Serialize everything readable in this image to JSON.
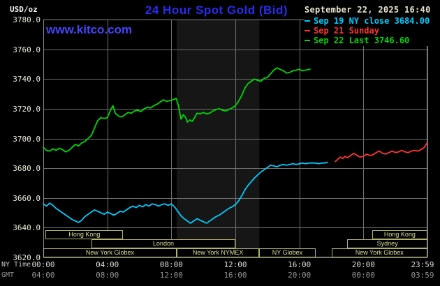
{
  "header": {
    "unit_label": "USD/oz",
    "title": "24 Hour Spot Gold (Bid)",
    "datetime": "September 22, 2025 16:40",
    "watermark": "www.kitco.com"
  },
  "legend": {
    "items": [
      {
        "label": "Sep 19 NY close 3684.00",
        "color": "#00ccff"
      },
      {
        "label": "Sep 21 Sunday",
        "color": "#ff3434"
      },
      {
        "label": "Sep 22 Last 3746.60",
        "color": "#00d800"
      }
    ]
  },
  "axes": {
    "ny_time_label": "NY Time",
    "gmt_label": "GMT",
    "ny_time_ticks": [
      "00:00",
      "04:00",
      "08:00",
      "12:00",
      "16:00",
      "20:00",
      "23:59"
    ],
    "gmt_ticks": [
      "04:00",
      "08:00",
      "12:00",
      "16:00",
      "20:00",
      "00:00",
      "03:59"
    ],
    "y_ticks": [
      "3780.0",
      "3760.0",
      "3740.0",
      "3720.0",
      "3700.0",
      "3680.0",
      "3660.0",
      "3640.0",
      "3620.0"
    ]
  },
  "sessions": [
    {
      "label": "Hong Kong",
      "row": 0,
      "start": 0.15,
      "end": 5.0
    },
    {
      "label": "Hong Kong",
      "row": 0,
      "start": 20.55,
      "end": 24
    },
    {
      "label": "London",
      "row": 1,
      "start": 3.0,
      "end": 12.0
    },
    {
      "label": "Sydney",
      "row": 1,
      "start": 19.0,
      "end": 24
    },
    {
      "label": "New York Globex",
      "row": 2,
      "start": 0,
      "end": 8.33
    },
    {
      "label": "New York NYMEX",
      "row": 2,
      "start": 8.33,
      "end": 13.5
    },
    {
      "label": "NY Globex",
      "row": 2,
      "start": 13.5,
      "end": 17.0
    },
    {
      "label": "New York Globex",
      "row": 2,
      "start": 18.0,
      "end": 24
    }
  ],
  "chart_data": {
    "type": "line",
    "title": "24 Hour Spot Gold (Bid)",
    "xlabel": "NY Time (hours)",
    "ylabel": "USD/oz",
    "xlim": [
      0,
      24
    ],
    "ylim": [
      3620,
      3780
    ],
    "x_grid_step": 4,
    "y_grid_step": 20,
    "grid": true,
    "legend_position": "top-right",
    "nymex_shade": {
      "start": 8.33,
      "end": 13.5
    },
    "colors": {
      "grid": "#707070",
      "border": "#8a8a8a",
      "shade": "#161616"
    },
    "series": [
      {
        "name": "Sep 19 NY close",
        "color": "#00ccff",
        "points": [
          [
            0,
            3656
          ],
          [
            0.2,
            3654.5
          ],
          [
            0.4,
            3656.5
          ],
          [
            0.6,
            3655
          ],
          [
            0.8,
            3653
          ],
          [
            1,
            3651.5
          ],
          [
            1.2,
            3650
          ],
          [
            1.4,
            3648.5
          ],
          [
            1.6,
            3647
          ],
          [
            1.8,
            3645.5
          ],
          [
            2,
            3644.5
          ],
          [
            2.2,
            3643.5
          ],
          [
            2.4,
            3645
          ],
          [
            2.6,
            3647.5
          ],
          [
            2.8,
            3649
          ],
          [
            3,
            3650.5
          ],
          [
            3.2,
            3652
          ],
          [
            3.4,
            3651
          ],
          [
            3.6,
            3650
          ],
          [
            3.8,
            3649
          ],
          [
            4,
            3650.5
          ],
          [
            4.2,
            3649.5
          ],
          [
            4.4,
            3648.5
          ],
          [
            4.6,
            3649.5
          ],
          [
            4.8,
            3651
          ],
          [
            5,
            3650.5
          ],
          [
            5.2,
            3652
          ],
          [
            5.4,
            3653.5
          ],
          [
            5.6,
            3654.5
          ],
          [
            5.8,
            3653.5
          ],
          [
            6,
            3655
          ],
          [
            6.2,
            3654
          ],
          [
            6.4,
            3655.5
          ],
          [
            6.6,
            3654.5
          ],
          [
            6.8,
            3656
          ],
          [
            7,
            3655.5
          ],
          [
            7.2,
            3654.5
          ],
          [
            7.4,
            3655.5
          ],
          [
            7.6,
            3656
          ],
          [
            7.8,
            3655
          ],
          [
            8,
            3656
          ],
          [
            8.2,
            3654
          ],
          [
            8.4,
            3651
          ],
          [
            8.6,
            3648
          ],
          [
            8.8,
            3646
          ],
          [
            9,
            3644.5
          ],
          [
            9.2,
            3643
          ],
          [
            9.4,
            3644.5
          ],
          [
            9.6,
            3646
          ],
          [
            9.8,
            3645
          ],
          [
            10,
            3644
          ],
          [
            10.2,
            3643
          ],
          [
            10.4,
            3644.5
          ],
          [
            10.6,
            3646
          ],
          [
            10.8,
            3647.5
          ],
          [
            11,
            3648.5
          ],
          [
            11.2,
            3650
          ],
          [
            11.4,
            3651.5
          ],
          [
            11.6,
            3653
          ],
          [
            11.8,
            3654
          ],
          [
            12,
            3655.5
          ],
          [
            12.2,
            3658
          ],
          [
            12.4,
            3661.5
          ],
          [
            12.6,
            3665.5
          ],
          [
            12.8,
            3668.5
          ],
          [
            13,
            3671
          ],
          [
            13.2,
            3673.5
          ],
          [
            13.4,
            3675.5
          ],
          [
            13.6,
            3677.5
          ],
          [
            13.8,
            3679
          ],
          [
            14,
            3680.5
          ],
          [
            14.2,
            3682
          ],
          [
            14.4,
            3681.5
          ],
          [
            14.6,
            3681
          ],
          [
            14.8,
            3682
          ],
          [
            15,
            3682.5
          ],
          [
            15.2,
            3682
          ],
          [
            15.4,
            3682.5
          ],
          [
            15.6,
            3683
          ],
          [
            15.8,
            3682.5
          ],
          [
            16,
            3683
          ],
          [
            16.2,
            3683.5
          ],
          [
            16.4,
            3683
          ],
          [
            16.6,
            3683.5
          ],
          [
            16.8,
            3683.5
          ],
          [
            17,
            3683.5
          ],
          [
            17.2,
            3683
          ],
          [
            17.4,
            3683.5
          ],
          [
            17.6,
            3683.5
          ],
          [
            17.75,
            3684
          ]
        ]
      },
      {
        "name": "Sep 21 Sunday",
        "color": "#ff3434",
        "points": [
          [
            18.25,
            3684.5
          ],
          [
            18.4,
            3686
          ],
          [
            18.55,
            3687.5
          ],
          [
            18.7,
            3686.5
          ],
          [
            18.85,
            3688
          ],
          [
            19,
            3687
          ],
          [
            19.2,
            3688.5
          ],
          [
            19.4,
            3690
          ],
          [
            19.6,
            3688.5
          ],
          [
            19.8,
            3687.5
          ],
          [
            20,
            3688
          ],
          [
            20.2,
            3689.5
          ],
          [
            20.4,
            3688.5
          ],
          [
            20.6,
            3689
          ],
          [
            20.8,
            3690.5
          ],
          [
            21,
            3691.5
          ],
          [
            21.2,
            3690
          ],
          [
            21.4,
            3689.5
          ],
          [
            21.6,
            3690.5
          ],
          [
            21.8,
            3691.5
          ],
          [
            22,
            3690.5
          ],
          [
            22.2,
            3691
          ],
          [
            22.4,
            3692
          ],
          [
            22.6,
            3691
          ],
          [
            22.8,
            3690.5
          ],
          [
            23,
            3691.5
          ],
          [
            23.2,
            3692
          ],
          [
            23.4,
            3691.5
          ],
          [
            23.6,
            3692.5
          ],
          [
            23.8,
            3694
          ],
          [
            23.98,
            3697
          ]
        ]
      },
      {
        "name": "Sep 22 Last",
        "color": "#00d800",
        "points": [
          [
            0,
            3694
          ],
          [
            0.2,
            3692
          ],
          [
            0.4,
            3691.5
          ],
          [
            0.6,
            3693
          ],
          [
            0.8,
            3692
          ],
          [
            1,
            3693.5
          ],
          [
            1.2,
            3692.5
          ],
          [
            1.4,
            3691
          ],
          [
            1.6,
            3692
          ],
          [
            1.8,
            3694
          ],
          [
            2,
            3696
          ],
          [
            2.2,
            3695
          ],
          [
            2.4,
            3697
          ],
          [
            2.6,
            3698
          ],
          [
            2.8,
            3700
          ],
          [
            3,
            3702
          ],
          [
            3.2,
            3707
          ],
          [
            3.4,
            3712
          ],
          [
            3.6,
            3714
          ],
          [
            3.8,
            3713.5
          ],
          [
            4,
            3714
          ],
          [
            4.2,
            3719
          ],
          [
            4.35,
            3722
          ],
          [
            4.5,
            3717
          ],
          [
            4.7,
            3715
          ],
          [
            4.9,
            3714.5
          ],
          [
            5.1,
            3716
          ],
          [
            5.3,
            3717.5
          ],
          [
            5.5,
            3717
          ],
          [
            5.7,
            3718.5
          ],
          [
            5.9,
            3719
          ],
          [
            6.1,
            3718
          ],
          [
            6.3,
            3720
          ],
          [
            6.5,
            3721
          ],
          [
            6.7,
            3720.5
          ],
          [
            6.9,
            3722
          ],
          [
            7.1,
            3723
          ],
          [
            7.3,
            3724.5
          ],
          [
            7.5,
            3726
          ],
          [
            7.7,
            3725
          ],
          [
            7.9,
            3725.5
          ],
          [
            8.1,
            3726
          ],
          [
            8.3,
            3727
          ],
          [
            8.45,
            3722
          ],
          [
            8.6,
            3713
          ],
          [
            8.75,
            3716
          ],
          [
            8.9,
            3714
          ],
          [
            9,
            3711
          ],
          [
            9.15,
            3712.5
          ],
          [
            9.3,
            3711.5
          ],
          [
            9.45,
            3714
          ],
          [
            9.6,
            3717
          ],
          [
            9.8,
            3716.5
          ],
          [
            10,
            3717.5
          ],
          [
            10.2,
            3716.5
          ],
          [
            10.4,
            3717
          ],
          [
            10.6,
            3718.5
          ],
          [
            10.8,
            3719.5
          ],
          [
            11,
            3720
          ],
          [
            11.2,
            3719
          ],
          [
            11.4,
            3718.5
          ],
          [
            11.6,
            3719.5
          ],
          [
            11.8,
            3720.5
          ],
          [
            12,
            3722
          ],
          [
            12.2,
            3725
          ],
          [
            12.4,
            3729
          ],
          [
            12.6,
            3734
          ],
          [
            12.8,
            3737
          ],
          [
            13,
            3738.5
          ],
          [
            13.2,
            3740
          ],
          [
            13.4,
            3739
          ],
          [
            13.6,
            3738.5
          ],
          [
            13.8,
            3740.5
          ],
          [
            14,
            3741
          ],
          [
            14.2,
            3743.5
          ],
          [
            14.4,
            3746
          ],
          [
            14.6,
            3747.5
          ],
          [
            14.8,
            3746.5
          ],
          [
            15,
            3745.5
          ],
          [
            15.2,
            3744
          ],
          [
            15.4,
            3744.5
          ],
          [
            15.6,
            3745.5
          ],
          [
            15.8,
            3746
          ],
          [
            16,
            3746.5
          ],
          [
            16.2,
            3745.5
          ],
          [
            16.4,
            3746
          ],
          [
            16.67,
            3746.6
          ]
        ]
      }
    ]
  }
}
